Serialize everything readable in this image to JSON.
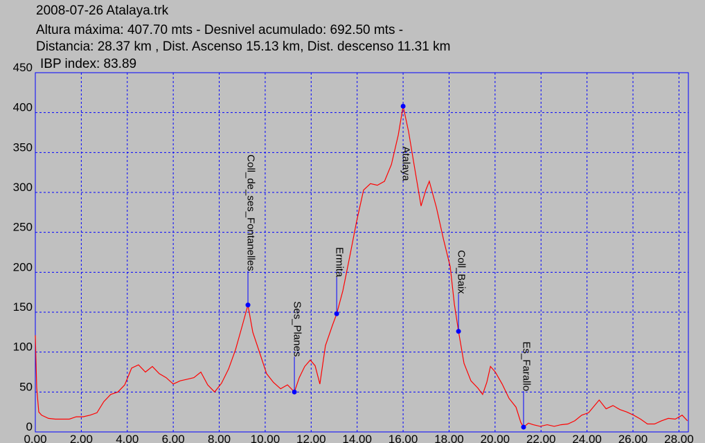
{
  "chart_data": {
    "type": "line",
    "title_lines": [
      "2008-07-26 Atalaya.trk",
      "Altura máxima: 407.70 mts -  Desnivel acumulado: 692.50 mts -",
      "Distancia: 28.37 km , Dist. Ascenso 15.13 km,  Dist. descenso 11.31 km",
      "IBP index: 83.89"
    ],
    "xlim": [
      0,
      28.41
    ],
    "ylim": [
      0,
      450
    ],
    "xticks": [
      {
        "value": 0,
        "label": "0.00"
      },
      {
        "value": 2,
        "label": "2.00"
      },
      {
        "value": 4,
        "label": "4.00"
      },
      {
        "value": 6,
        "label": "6.00"
      },
      {
        "value": 8,
        "label": "8.00"
      },
      {
        "value": 10,
        "label": "10.00"
      },
      {
        "value": 12,
        "label": "12.00"
      },
      {
        "value": 14,
        "label": "14.00"
      },
      {
        "value": 16,
        "label": "16.00"
      },
      {
        "value": 18,
        "label": "18.00"
      },
      {
        "value": 20,
        "label": "20.00"
      },
      {
        "value": 22,
        "label": "22.00"
      },
      {
        "value": 24,
        "label": "24.00"
      },
      {
        "value": 26,
        "label": "26.00"
      },
      {
        "value": 28,
        "label": "28.00"
      }
    ],
    "yticks": [
      0,
      50,
      100,
      150,
      200,
      250,
      300,
      350,
      400,
      450
    ],
    "grid": true,
    "grid_color": "#0000ff",
    "series": [
      {
        "color": "#ff0000",
        "x": [
          0.0,
          0.06,
          0.15,
          0.27,
          0.57,
          0.87,
          1.18,
          1.48,
          1.78,
          2.08,
          2.38,
          2.68,
          2.98,
          3.28,
          3.59,
          3.89,
          4.19,
          4.49,
          4.79,
          5.09,
          5.39,
          5.69,
          6.0,
          6.3,
          6.6,
          6.9,
          7.2,
          7.5,
          7.8,
          8.1,
          8.41,
          8.71,
          9.01,
          9.25,
          9.46,
          9.76,
          10.06,
          10.36,
          10.67,
          10.97,
          11.27,
          11.48,
          11.72,
          11.96,
          12.17,
          12.38,
          12.62,
          12.93,
          13.11,
          13.38,
          13.68,
          13.98,
          14.28,
          14.58,
          14.88,
          15.19,
          15.49,
          15.79,
          16.0,
          16.24,
          16.54,
          16.78,
          16.99,
          17.14,
          17.45,
          17.75,
          18.05,
          18.23,
          18.41,
          18.65,
          18.95,
          19.25,
          19.46,
          19.64,
          19.8,
          20.01,
          20.31,
          20.61,
          20.91,
          21.12,
          21.24,
          21.45,
          21.66,
          21.96,
          22.27,
          22.57,
          22.87,
          23.17,
          23.47,
          23.77,
          24.07,
          24.53,
          24.83,
          25.13,
          25.43,
          25.73,
          26.03,
          26.33,
          26.63,
          26.94,
          27.24,
          27.54,
          27.84,
          28.14,
          28.37
        ],
        "values": [
          121,
          55,
          25,
          21,
          17,
          16,
          16,
          16,
          19,
          19,
          21,
          24,
          38,
          47,
          50,
          59,
          80,
          84,
          75,
          82,
          73,
          68,
          60,
          64,
          66,
          68,
          75,
          59,
          50,
          61,
          79,
          103,
          134,
          159,
          125,
          99,
          73,
          62,
          54,
          59,
          50,
          68,
          82,
          90,
          83,
          60,
          108,
          134,
          148,
          177,
          220,
          264,
          303,
          311,
          309,
          314,
          335,
          372,
          408,
          376,
          324,
          283,
          303,
          314,
          281,
          242,
          207,
          160,
          126,
          86,
          64,
          55,
          47,
          62,
          82,
          75,
          60,
          42,
          31,
          12,
          6,
          11,
          9,
          7,
          9,
          7,
          9,
          10,
          14,
          21,
          24,
          40,
          29,
          33,
          28,
          25,
          21,
          16,
          10,
          10,
          14,
          17,
          16,
          21,
          14
        ]
      }
    ],
    "waypoints": {
      "labels": [
        "Coll_de_ses_Fontanelles",
        "Ses_Planes",
        "Ermita",
        "Atalaya",
        "Coll_Baix",
        "Es_Farallo"
      ],
      "color": "#0000ff",
      "x": [
        9.25,
        11.27,
        13.11,
        16.0,
        18.41,
        21.24
      ],
      "values": [
        159,
        50,
        148,
        408,
        126,
        6
      ]
    }
  }
}
